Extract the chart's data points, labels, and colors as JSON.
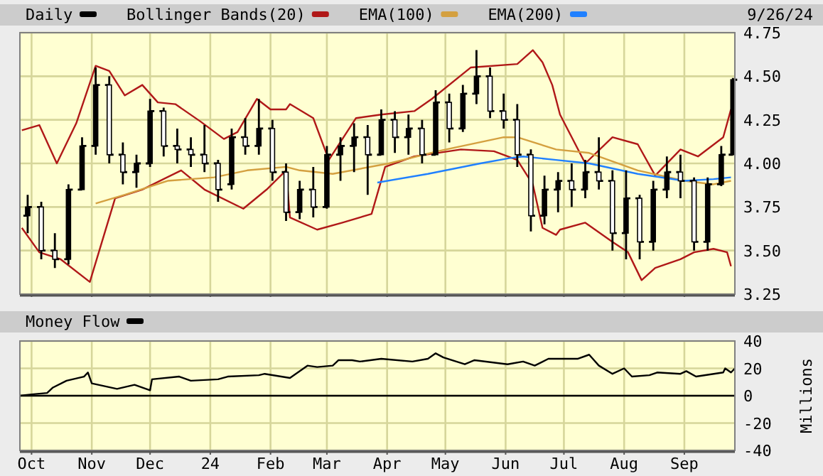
{
  "chart_data": [
    {
      "type": "candlestick",
      "xlim": [
        "2023-09-25",
        "2024-09-27"
      ],
      "ylim": [
        3.25,
        4.75
      ],
      "xticks": [
        {
          "value": "2023-10-01",
          "label": null
        },
        {
          "value": "2023-11-01",
          "label": null
        },
        {
          "value": "2023-12-01",
          "label": null
        },
        {
          "value": "2024-01-01",
          "label": null
        },
        {
          "value": "2024-02-01",
          "label": null
        },
        {
          "value": "2024-03-01",
          "label": null
        },
        {
          "value": "2024-04-01",
          "label": null
        },
        {
          "value": "2024-05-01",
          "label": null
        },
        {
          "value": "2024-06-01",
          "label": null
        },
        {
          "value": "2024-07-01",
          "label": null
        },
        {
          "value": "2024-08-01",
          "label": null
        },
        {
          "value": "2024-09-01",
          "label": null
        }
      ],
      "yticks": [
        3.25,
        {
          "value": 3.5,
          "label": "3.50"
        },
        3.75,
        {
          "value": 4,
          "label": "4.00"
        },
        4.25,
        {
          "value": 4.5,
          "label": "4.50"
        },
        4.75
      ],
      "tick_labels": "y",
      "grid": true,
      "legend": "top left",
      "annotations": [
        "9/26/24"
      ],
      "series": [
        {
          "name": "Daily",
          "color": "#000000",
          "x": [
            "2023-09-29",
            "2023-10-06",
            "2023-10-13",
            "2023-10-20",
            "2023-10-27",
            "2023-11-03",
            "2023-11-10",
            "2023-11-17",
            "2023-11-24",
            "2023-12-01",
            "2023-12-08",
            "2023-12-15",
            "2023-12-22",
            "2023-12-29",
            "2024-01-05",
            "2024-01-12",
            "2024-01-19",
            "2024-01-26",
            "2024-02-02",
            "2024-02-09",
            "2024-02-16",
            "2024-02-23",
            "2024-03-01",
            "2024-03-08",
            "2024-03-15",
            "2024-03-22",
            "2024-03-29",
            "2024-04-05",
            "2024-04-12",
            "2024-04-19",
            "2024-04-26",
            "2024-05-03",
            "2024-05-10",
            "2024-05-17",
            "2024-05-24",
            "2024-05-31",
            "2024-06-07",
            "2024-06-14",
            "2024-06-21",
            "2024-06-28",
            "2024-07-05",
            "2024-07-12",
            "2024-07-19",
            "2024-07-26",
            "2024-08-02",
            "2024-08-09",
            "2024-08-16",
            "2024-08-23",
            "2024-08-30",
            "2024-09-06",
            "2024-09-13",
            "2024-09-20",
            "2024-09-26"
          ],
          "ohlc": [
            [
              3.7,
              3.82,
              3.6,
              3.75
            ],
            [
              3.75,
              3.78,
              3.45,
              3.5
            ],
            [
              3.5,
              3.6,
              3.4,
              3.45
            ],
            [
              3.45,
              3.88,
              3.42,
              3.85
            ],
            [
              3.85,
              4.15,
              3.85,
              4.1
            ],
            [
              4.1,
              4.55,
              4.05,
              4.45
            ],
            [
              4.45,
              4.5,
              4.0,
              4.05
            ],
            [
              4.05,
              4.12,
              3.88,
              3.95
            ],
            [
              3.95,
              4.05,
              3.86,
              4.0
            ],
            [
              4.0,
              4.37,
              3.98,
              4.3
            ],
            [
              4.3,
              4.32,
              4.04,
              4.1
            ],
            [
              4.1,
              4.2,
              4.0,
              4.08
            ],
            [
              4.08,
              4.15,
              3.98,
              4.05
            ],
            [
              4.05,
              4.22,
              3.95,
              4.0
            ],
            [
              4.0,
              4.02,
              3.78,
              3.85
            ],
            [
              3.88,
              4.2,
              3.85,
              4.15
            ],
            [
              4.15,
              4.26,
              4.05,
              4.1
            ],
            [
              4.1,
              4.37,
              4.05,
              4.2
            ],
            [
              4.2,
              4.25,
              3.9,
              3.95
            ],
            [
              3.95,
              4.0,
              3.67,
              3.72
            ],
            [
              3.72,
              3.9,
              3.68,
              3.85
            ],
            [
              3.85,
              3.98,
              3.69,
              3.75
            ],
            [
              3.75,
              4.1,
              3.74,
              4.05
            ],
            [
              4.05,
              4.15,
              3.9,
              4.1
            ],
            [
              4.1,
              4.23,
              3.95,
              4.15
            ],
            [
              4.15,
              4.22,
              3.82,
              4.05
            ],
            [
              4.05,
              4.31,
              4.05,
              4.25
            ],
            [
              4.25,
              4.3,
              4.06,
              4.15
            ],
            [
              4.15,
              4.28,
              4.05,
              4.2
            ],
            [
              4.2,
              4.25,
              4.0,
              4.05
            ],
            [
              4.05,
              4.42,
              4.05,
              4.35
            ],
            [
              4.35,
              4.4,
              4.12,
              4.2
            ],
            [
              4.2,
              4.45,
              4.18,
              4.4
            ],
            [
              4.4,
              4.65,
              4.34,
              4.5
            ],
            [
              4.5,
              4.55,
              4.26,
              4.3
            ],
            [
              4.3,
              4.4,
              4.2,
              4.25
            ],
            [
              4.25,
              4.34,
              3.98,
              4.05
            ],
            [
              4.05,
              4.08,
              3.61,
              3.7
            ],
            [
              3.7,
              3.93,
              3.65,
              3.85
            ],
            [
              3.85,
              3.95,
              3.72,
              3.9
            ],
            [
              3.9,
              4.0,
              3.75,
              3.85
            ],
            [
              3.85,
              4.02,
              3.8,
              3.95
            ],
            [
              3.95,
              4.15,
              3.85,
              3.9
            ],
            [
              3.9,
              3.96,
              3.5,
              3.6
            ],
            [
              3.6,
              3.96,
              3.45,
              3.8
            ],
            [
              3.8,
              3.82,
              3.45,
              3.55
            ],
            [
              3.55,
              3.9,
              3.5,
              3.85
            ],
            [
              3.85,
              4.04,
              3.8,
              3.95
            ],
            [
              3.95,
              4.05,
              3.8,
              3.9
            ],
            [
              3.9,
              3.92,
              3.5,
              3.55
            ],
            [
              3.55,
              3.92,
              3.5,
              3.88
            ],
            [
              3.88,
              4.1,
              3.87,
              4.05
            ],
            [
              4.05,
              4.49,
              4.05,
              4.48
            ]
          ]
        },
        {
          "name": "Bollinger Bands(20)",
          "type": "line",
          "color": "#b01818",
          "x": [
            "2023-09-26",
            "2023-10-05",
            "2023-10-14",
            "2023-10-24",
            "2023-11-03",
            "2023-11-10",
            "2023-11-18",
            "2023-11-27",
            "2023-12-05",
            "2023-12-14",
            "2023-12-27",
            "2024-01-08",
            "2024-01-15",
            "2024-01-25",
            "2024-02-01",
            "2024-02-09",
            "2024-02-11",
            "2024-02-23",
            "2024-03-02",
            "2024-03-16",
            "2024-03-29",
            "2024-04-15",
            "2024-04-24",
            "2024-05-14",
            "2024-06-07",
            "2024-06-15",
            "2024-06-20",
            "2024-06-25",
            "2024-06-29",
            "2024-07-12",
            "2024-07-26",
            "2024-08-08",
            "2024-08-17",
            "2024-08-30",
            "2024-09-08",
            "2024-09-21",
            "2024-09-25"
          ],
          "values": [
            4.19,
            4.22,
            4.0,
            4.23,
            4.56,
            4.53,
            4.39,
            4.45,
            4.35,
            4.34,
            4.24,
            4.14,
            4.18,
            4.37,
            4.31,
            4.31,
            4.34,
            4.26,
            4.02,
            4.26,
            4.28,
            4.3,
            4.37,
            4.55,
            4.57,
            4.65,
            4.58,
            4.45,
            4.28,
            4.0,
            4.15,
            4.11,
            3.93,
            4.08,
            4.04,
            4.15,
            4.31
          ]
        },
        {
          "type": "line",
          "color": "#b01818",
          "x": [
            "2023-09-26",
            "2023-10-05",
            "2023-10-16",
            "2023-10-31",
            "2023-11-13",
            "2023-11-27",
            "2023-12-17",
            "2023-12-29",
            "2024-01-18",
            "2024-01-30",
            "2024-02-09",
            "2024-02-11",
            "2024-02-25",
            "2024-03-09",
            "2024-03-24",
            "2024-03-31",
            "2024-04-15",
            "2024-05-09",
            "2024-05-26",
            "2024-06-07",
            "2024-06-15",
            "2024-06-20",
            "2024-06-27",
            "2024-06-29",
            "2024-07-12",
            "2024-07-26",
            "2024-08-03",
            "2024-08-10",
            "2024-08-17",
            "2024-08-30",
            "2024-09-06",
            "2024-09-16",
            "2024-09-23",
            "2024-09-25"
          ],
          "values": [
            3.63,
            3.49,
            3.45,
            3.32,
            3.8,
            3.85,
            3.96,
            3.85,
            3.74,
            3.85,
            3.96,
            3.69,
            3.62,
            3.66,
            3.71,
            3.98,
            4.04,
            4.08,
            4.07,
            4.02,
            3.88,
            3.63,
            3.59,
            3.62,
            3.66,
            3.55,
            3.49,
            3.33,
            3.4,
            3.45,
            3.49,
            3.51,
            3.49,
            3.41
          ]
        },
        {
          "name": "EMA(100)",
          "type": "line",
          "color": "#d4a040",
          "x": [
            "2023-11-03",
            "2023-11-18",
            "2023-12-10",
            "2024-01-03",
            "2024-01-20",
            "2024-02-09",
            "2024-02-16",
            "2024-03-04",
            "2024-04-02",
            "2024-04-27",
            "2024-05-31",
            "2024-06-07",
            "2024-06-27",
            "2024-07-14",
            "2024-08-08",
            "2024-09-01",
            "2024-09-16",
            "2024-09-25"
          ],
          "values": [
            3.77,
            3.82,
            3.9,
            3.92,
            3.96,
            3.98,
            3.96,
            3.94,
            4.0,
            4.07,
            4.15,
            4.15,
            4.08,
            4.06,
            3.96,
            3.9,
            3.88,
            3.9
          ]
        },
        {
          "name": "EMA(200)",
          "type": "line",
          "color": "#2080ff",
          "x": [
            "2024-03-27",
            "2024-04-22",
            "2024-05-19",
            "2024-06-03",
            "2024-06-10",
            "2024-06-27",
            "2024-07-14",
            "2024-08-08",
            "2024-09-01",
            "2024-09-16",
            "2024-09-25"
          ],
          "values": [
            3.89,
            3.94,
            4.0,
            4.03,
            4.04,
            4.02,
            4.0,
            3.94,
            3.9,
            3.91,
            3.92
          ]
        }
      ]
    },
    {
      "type": "line",
      "xlim": [
        "2023-09-25",
        "2024-09-27"
      ],
      "ylim": [
        -40,
        40
      ],
      "xticks": [
        {
          "value": "2023-10-01",
          "label": "Oct"
        },
        {
          "value": "2023-11-01",
          "label": "Nov"
        },
        {
          "value": "2023-12-01",
          "label": "Dec"
        },
        {
          "value": "2024-01-01",
          "label": "24"
        },
        {
          "value": "2024-02-01",
          "label": "Feb"
        },
        {
          "value": "2024-03-01",
          "label": "Mar"
        },
        {
          "value": "2024-04-01",
          "label": "Apr"
        },
        {
          "value": "2024-05-01",
          "label": "May"
        },
        {
          "value": "2024-06-01",
          "label": "Jun"
        },
        {
          "value": "2024-07-01",
          "label": "Jul"
        },
        {
          "value": "2024-08-01",
          "label": "Aug"
        },
        {
          "value": "2024-09-01",
          "label": "Sep"
        }
      ],
      "yticks": [
        -40,
        -20,
        0,
        20,
        40
      ],
      "ylabel": "Millions",
      "grid": true,
      "legend": "top left",
      "ref_lines": [
        {
          "axis": "y",
          "value": 0,
          "color": "#000000"
        }
      ],
      "series": [
        {
          "name": "Money Flow",
          "color": "#000000",
          "x": [
            "2023-09-25",
            "2023-10-01",
            "2023-10-09",
            "2023-10-12",
            "2023-10-19",
            "2023-10-28",
            "2023-10-30",
            "2023-11-01",
            "2023-11-14",
            "2023-11-23",
            "2023-12-01",
            "2023-12-02",
            "2023-12-16",
            "2023-12-22",
            "2024-01-05",
            "2024-01-10",
            "2024-01-26",
            "2024-01-29",
            "2024-02-11",
            "2024-02-20",
            "2024-02-25",
            "2024-03-04",
            "2024-03-07",
            "2024-03-14",
            "2024-03-18",
            "2024-03-29",
            "2024-04-14",
            "2024-04-22",
            "2024-04-26",
            "2024-04-30",
            "2024-05-11",
            "2024-05-16",
            "2024-06-02",
            "2024-06-10",
            "2024-06-16",
            "2024-06-23",
            "2024-07-08",
            "2024-07-14",
            "2024-07-19",
            "2024-07-26",
            "2024-08-01",
            "2024-08-05",
            "2024-08-14",
            "2024-08-18",
            "2024-08-30",
            "2024-09-02",
            "2024-09-07",
            "2024-09-21",
            "2024-09-22",
            "2024-09-25",
            "2024-09-27"
          ],
          "values": [
            0,
            1,
            2,
            6,
            11,
            14,
            17,
            9,
            5,
            8,
            4,
            12,
            14,
            11,
            12,
            14,
            15,
            16,
            13,
            22,
            21,
            22,
            26,
            26,
            25,
            27,
            25,
            27,
            31,
            28,
            23,
            26,
            23,
            25,
            22,
            27,
            27,
            30,
            22,
            16,
            20,
            14,
            15,
            17,
            16,
            18,
            14,
            17,
            20,
            17,
            20
          ]
        }
      ]
    }
  ]
}
